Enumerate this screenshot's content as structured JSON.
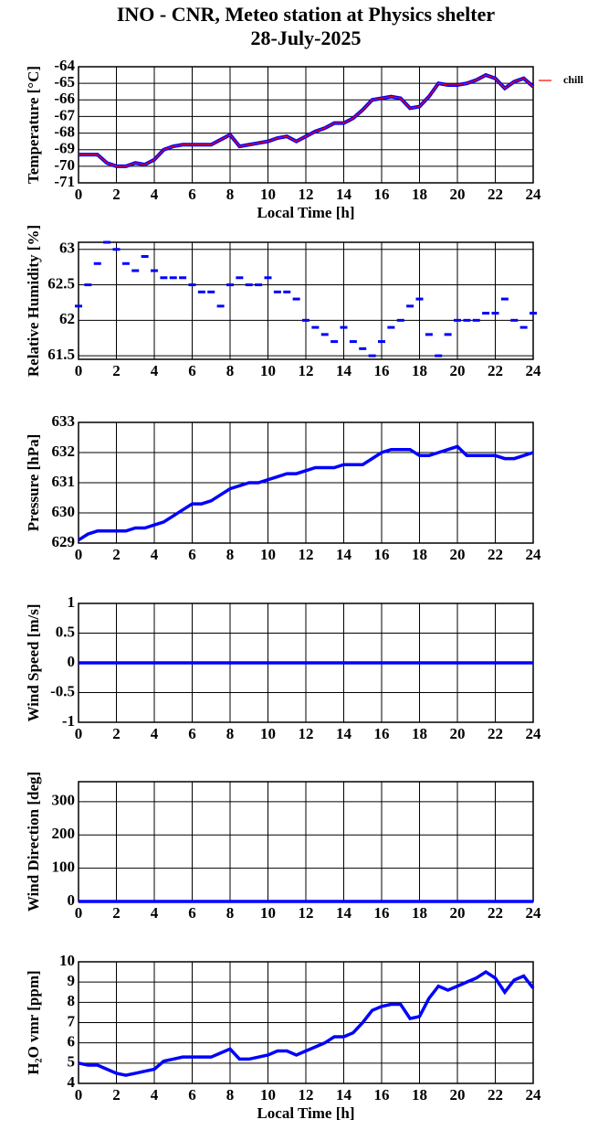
{
  "header": {
    "title": "INO - CNR, Meteo station at Physics shelter",
    "date": "28-July-2025"
  },
  "chart_data": [
    {
      "type": "line",
      "ylabel": "Temperature [°C]",
      "xlabel": "Local Time [h]",
      "x": [
        0,
        0.5,
        1,
        1.5,
        2,
        2.5,
        3,
        3.5,
        4,
        4.5,
        5,
        5.5,
        6,
        6.5,
        7,
        7.5,
        8,
        8.5,
        9,
        9.5,
        10,
        10.5,
        11,
        11.5,
        12,
        12.5,
        13,
        13.5,
        14,
        14.5,
        15,
        15.5,
        16,
        16.5,
        17,
        17.5,
        18,
        18.5,
        19,
        19.5,
        20,
        20.5,
        21,
        21.5,
        22,
        22.5,
        23,
        23.5,
        24
      ],
      "series": [
        {
          "name": "chill",
          "color": "#ff0000",
          "marker_color": "#0000ff",
          "values": [
            -69.3,
            -69.3,
            -69.3,
            -69.8,
            -70.0,
            -70.0,
            -69.8,
            -69.9,
            -69.6,
            -69.0,
            -68.8,
            -68.7,
            -68.7,
            -68.7,
            -68.7,
            -68.4,
            -68.1,
            -68.8,
            -68.7,
            -68.6,
            -68.5,
            -68.3,
            -68.2,
            -68.5,
            -68.2,
            -67.9,
            -67.7,
            -67.4,
            -67.4,
            -67.1,
            -66.6,
            -66.0,
            -65.9,
            -65.8,
            -65.9,
            -66.5,
            -66.4,
            -65.8,
            -65.0,
            -65.1,
            -65.1,
            -65.0,
            -64.8,
            -64.5,
            -64.7,
            -65.3,
            -64.9,
            -64.7,
            -65.2
          ]
        }
      ],
      "xlim": [
        0,
        24
      ],
      "xticks": [
        0,
        2,
        4,
        6,
        8,
        10,
        12,
        14,
        16,
        18,
        20,
        22,
        24
      ],
      "ylim": [
        -71,
        -64
      ],
      "yticks": [
        -64,
        -65,
        -66,
        -67,
        -68,
        -69,
        -70,
        -71
      ],
      "grid": true,
      "legend": "outside-right"
    },
    {
      "type": "scatter",
      "ylabel": "Relative Humidity [%]",
      "x": [
        0,
        0.5,
        1,
        1.5,
        2,
        2.5,
        3,
        3.5,
        4,
        4.5,
        5,
        5.5,
        6,
        6.5,
        7,
        7.5,
        8,
        8.5,
        9,
        9.5,
        10,
        10.5,
        11,
        11.5,
        12,
        12.5,
        13,
        13.5,
        14,
        14.5,
        15,
        15.5,
        16,
        16.5,
        17,
        17.5,
        18,
        18.5,
        19,
        19.5,
        20,
        20.5,
        21,
        21.5,
        22,
        22.5,
        23,
        23.5,
        24
      ],
      "series": [
        {
          "color": "#0000ff",
          "values": [
            62.2,
            62.5,
            62.8,
            63.1,
            63.0,
            62.8,
            62.7,
            62.9,
            62.7,
            62.6,
            62.6,
            62.6,
            62.5,
            62.4,
            62.4,
            62.2,
            62.5,
            62.6,
            62.5,
            62.5,
            62.6,
            62.4,
            62.4,
            62.3,
            62.0,
            61.9,
            61.8,
            61.7,
            61.9,
            61.7,
            61.6,
            61.5,
            61.7,
            61.9,
            62.0,
            62.2,
            62.3,
            61.8,
            61.5,
            61.8,
            62.0,
            62.0,
            62.0,
            62.1,
            62.1,
            62.3,
            62.0,
            61.9,
            62.1
          ]
        }
      ],
      "xlim": [
        0,
        24
      ],
      "xticks": [
        0,
        2,
        4,
        6,
        8,
        10,
        12,
        14,
        16,
        18,
        20,
        22,
        24
      ],
      "ylim": [
        61.45,
        63.1
      ],
      "yticks": [
        61.5,
        62,
        62.5,
        63
      ],
      "grid": true
    },
    {
      "type": "line",
      "ylabel": "Pressure [hPa]",
      "x": [
        0,
        0.5,
        1,
        1.5,
        2,
        2.5,
        3,
        3.5,
        4,
        4.5,
        5,
        5.5,
        6,
        6.5,
        7,
        7.5,
        8,
        8.5,
        9,
        9.5,
        10,
        10.5,
        11,
        11.5,
        12,
        12.5,
        13,
        13.5,
        14,
        14.5,
        15,
        15.5,
        16,
        16.5,
        17,
        17.5,
        18,
        18.5,
        19,
        19.5,
        20,
        20.5,
        21,
        21.5,
        22,
        22.5,
        23,
        23.5,
        24
      ],
      "series": [
        {
          "color": "#0000ff",
          "values": [
            629.1,
            629.3,
            629.4,
            629.4,
            629.4,
            629.4,
            629.5,
            629.5,
            629.6,
            629.7,
            629.9,
            630.1,
            630.3,
            630.3,
            630.4,
            630.6,
            630.8,
            630.9,
            631.0,
            631.0,
            631.1,
            631.2,
            631.3,
            631.3,
            631.4,
            631.5,
            631.5,
            631.5,
            631.6,
            631.6,
            631.6,
            631.8,
            632.0,
            632.1,
            632.1,
            632.1,
            631.9,
            631.9,
            632.0,
            632.1,
            632.2,
            631.9,
            631.9,
            631.9,
            631.9,
            631.8,
            631.8,
            631.9,
            632.0
          ]
        }
      ],
      "xlim": [
        0,
        24
      ],
      "xticks": [
        0,
        2,
        4,
        6,
        8,
        10,
        12,
        14,
        16,
        18,
        20,
        22,
        24
      ],
      "ylim": [
        629,
        633
      ],
      "yticks": [
        629,
        630,
        631,
        632,
        633
      ],
      "grid": true
    },
    {
      "type": "line",
      "ylabel": "Wind Speed [m/s]",
      "x": [
        0,
        24
      ],
      "series": [
        {
          "color": "#0000ff",
          "values": [
            0,
            0
          ]
        }
      ],
      "xlim": [
        0,
        24
      ],
      "xticks": [
        0,
        2,
        4,
        6,
        8,
        10,
        12,
        14,
        16,
        18,
        20,
        22,
        24
      ],
      "ylim": [
        -1,
        1
      ],
      "yticks": [
        -1,
        -0.5,
        0,
        0.5,
        1
      ],
      "grid": true
    },
    {
      "type": "line",
      "ylabel": "Wind Direction [deg]",
      "x": [
        0,
        24
      ],
      "series": [
        {
          "color": "#0000ff",
          "values": [
            0,
            0
          ]
        }
      ],
      "xlim": [
        0,
        24
      ],
      "xticks": [
        0,
        2,
        4,
        6,
        8,
        10,
        12,
        14,
        16,
        18,
        20,
        22,
        24
      ],
      "ylim": [
        0,
        360
      ],
      "yticks": [
        0,
        100,
        200,
        300
      ],
      "grid": true
    },
    {
      "type": "line",
      "ylabel": "H₂O vmr [ppm]",
      "xlabel": "Local Time [h]",
      "x": [
        0,
        0.5,
        1,
        1.5,
        2,
        2.5,
        3,
        3.5,
        4,
        4.5,
        5,
        5.5,
        6,
        6.5,
        7,
        7.5,
        8,
        8.5,
        9,
        9.5,
        10,
        10.5,
        11,
        11.5,
        12,
        12.5,
        13,
        13.5,
        14,
        14.5,
        15,
        15.5,
        16,
        16.5,
        17,
        17.5,
        18,
        18.5,
        19,
        19.5,
        20,
        20.5,
        21,
        21.5,
        22,
        22.5,
        23,
        23.5,
        24
      ],
      "series": [
        {
          "color": "#0000ff",
          "values": [
            5.0,
            4.9,
            4.9,
            4.7,
            4.5,
            4.4,
            4.5,
            4.6,
            4.7,
            5.1,
            5.2,
            5.3,
            5.3,
            5.3,
            5.3,
            5.5,
            5.7,
            5.2,
            5.2,
            5.3,
            5.4,
            5.6,
            5.6,
            5.4,
            5.6,
            5.8,
            6.0,
            6.3,
            6.3,
            6.5,
            7.0,
            7.6,
            7.8,
            7.9,
            7.9,
            7.2,
            7.3,
            8.2,
            8.8,
            8.6,
            8.8,
            9.0,
            9.2,
            9.5,
            9.2,
            8.5,
            9.1,
            9.3,
            8.7
          ]
        }
      ],
      "xlim": [
        0,
        24
      ],
      "xticks": [
        0,
        2,
        4,
        6,
        8,
        10,
        12,
        14,
        16,
        18,
        20,
        22,
        24
      ],
      "ylim": [
        4,
        10
      ],
      "yticks": [
        4,
        5,
        6,
        7,
        8,
        9,
        10
      ],
      "grid": true
    }
  ]
}
